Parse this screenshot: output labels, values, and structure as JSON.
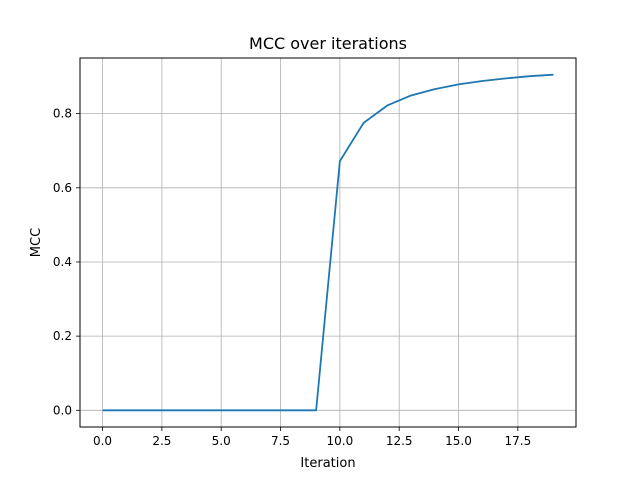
{
  "chart_data": {
    "type": "line",
    "title": "MCC over iterations",
    "xlabel": "Iteration",
    "ylabel": "MCC",
    "xlim": [
      -0.95,
      19.95
    ],
    "ylim": [
      -0.045,
      0.95
    ],
    "x_ticks": [
      0.0,
      2.5,
      5.0,
      7.5,
      10.0,
      12.5,
      15.0,
      17.5
    ],
    "x_tick_labels": [
      "0.0",
      "2.5",
      "5.0",
      "7.5",
      "10.0",
      "12.5",
      "15.0",
      "17.5"
    ],
    "y_ticks": [
      0.0,
      0.2,
      0.4,
      0.6,
      0.8
    ],
    "y_tick_labels": [
      "0.0",
      "0.2",
      "0.4",
      "0.6",
      "0.8"
    ],
    "grid": true,
    "series": [
      {
        "color": "#1f77b4",
        "x": [
          0,
          1,
          2,
          3,
          4,
          5,
          6,
          7,
          8,
          9,
          10,
          11,
          12,
          13,
          14,
          15,
          16,
          17,
          18,
          19
        ],
        "y": [
          0,
          0,
          0,
          0,
          0,
          0,
          0,
          0,
          0,
          0,
          0.672,
          0.775,
          0.822,
          0.849,
          0.866,
          0.879,
          0.888,
          0.895,
          0.901,
          0.905
        ]
      }
    ]
  }
}
